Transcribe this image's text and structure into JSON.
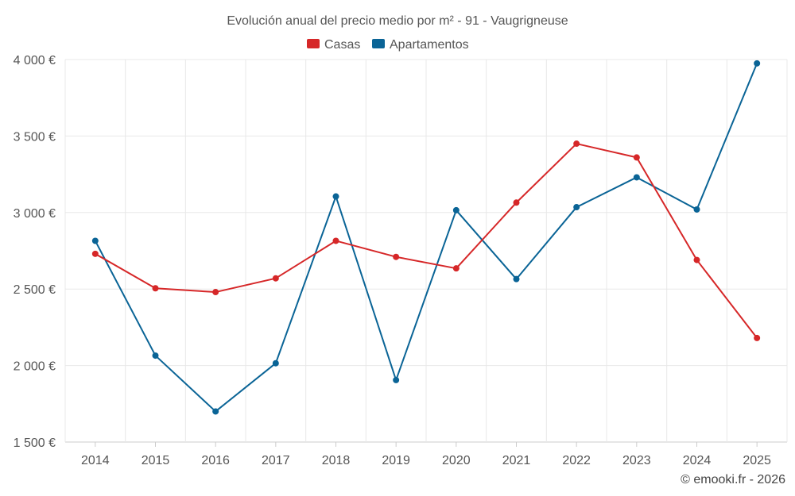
{
  "chart_data": {
    "type": "line",
    "title": "Evolución anual del precio medio por m² - 91 - Vaugrigneuse",
    "categories": [
      "2014",
      "2015",
      "2016",
      "2017",
      "2018",
      "2019",
      "2020",
      "2021",
      "2022",
      "2023",
      "2024",
      "2025"
    ],
    "ylim": [
      1500,
      4000
    ],
    "yticks": [
      1500,
      2000,
      2500,
      3000,
      3500,
      4000
    ],
    "ytick_labels": [
      "1 500 €",
      "2 000 €",
      "2 500 €",
      "3 000 €",
      "3 500 €",
      "4 000 €"
    ],
    "grid": true,
    "legend_position": "top-center",
    "series": [
      {
        "name": "Casas",
        "color": "#d62728",
        "values": [
          2730,
          2505,
          2480,
          2570,
          2815,
          2710,
          2635,
          3065,
          3450,
          3360,
          2690,
          2180
        ]
      },
      {
        "name": "Apartamentos",
        "color": "#0a6496",
        "values": [
          2815,
          2065,
          1700,
          2015,
          3105,
          1905,
          3015,
          2565,
          3035,
          3230,
          3020,
          3975
        ]
      }
    ]
  },
  "credit": "© emooki.fr - 2026"
}
